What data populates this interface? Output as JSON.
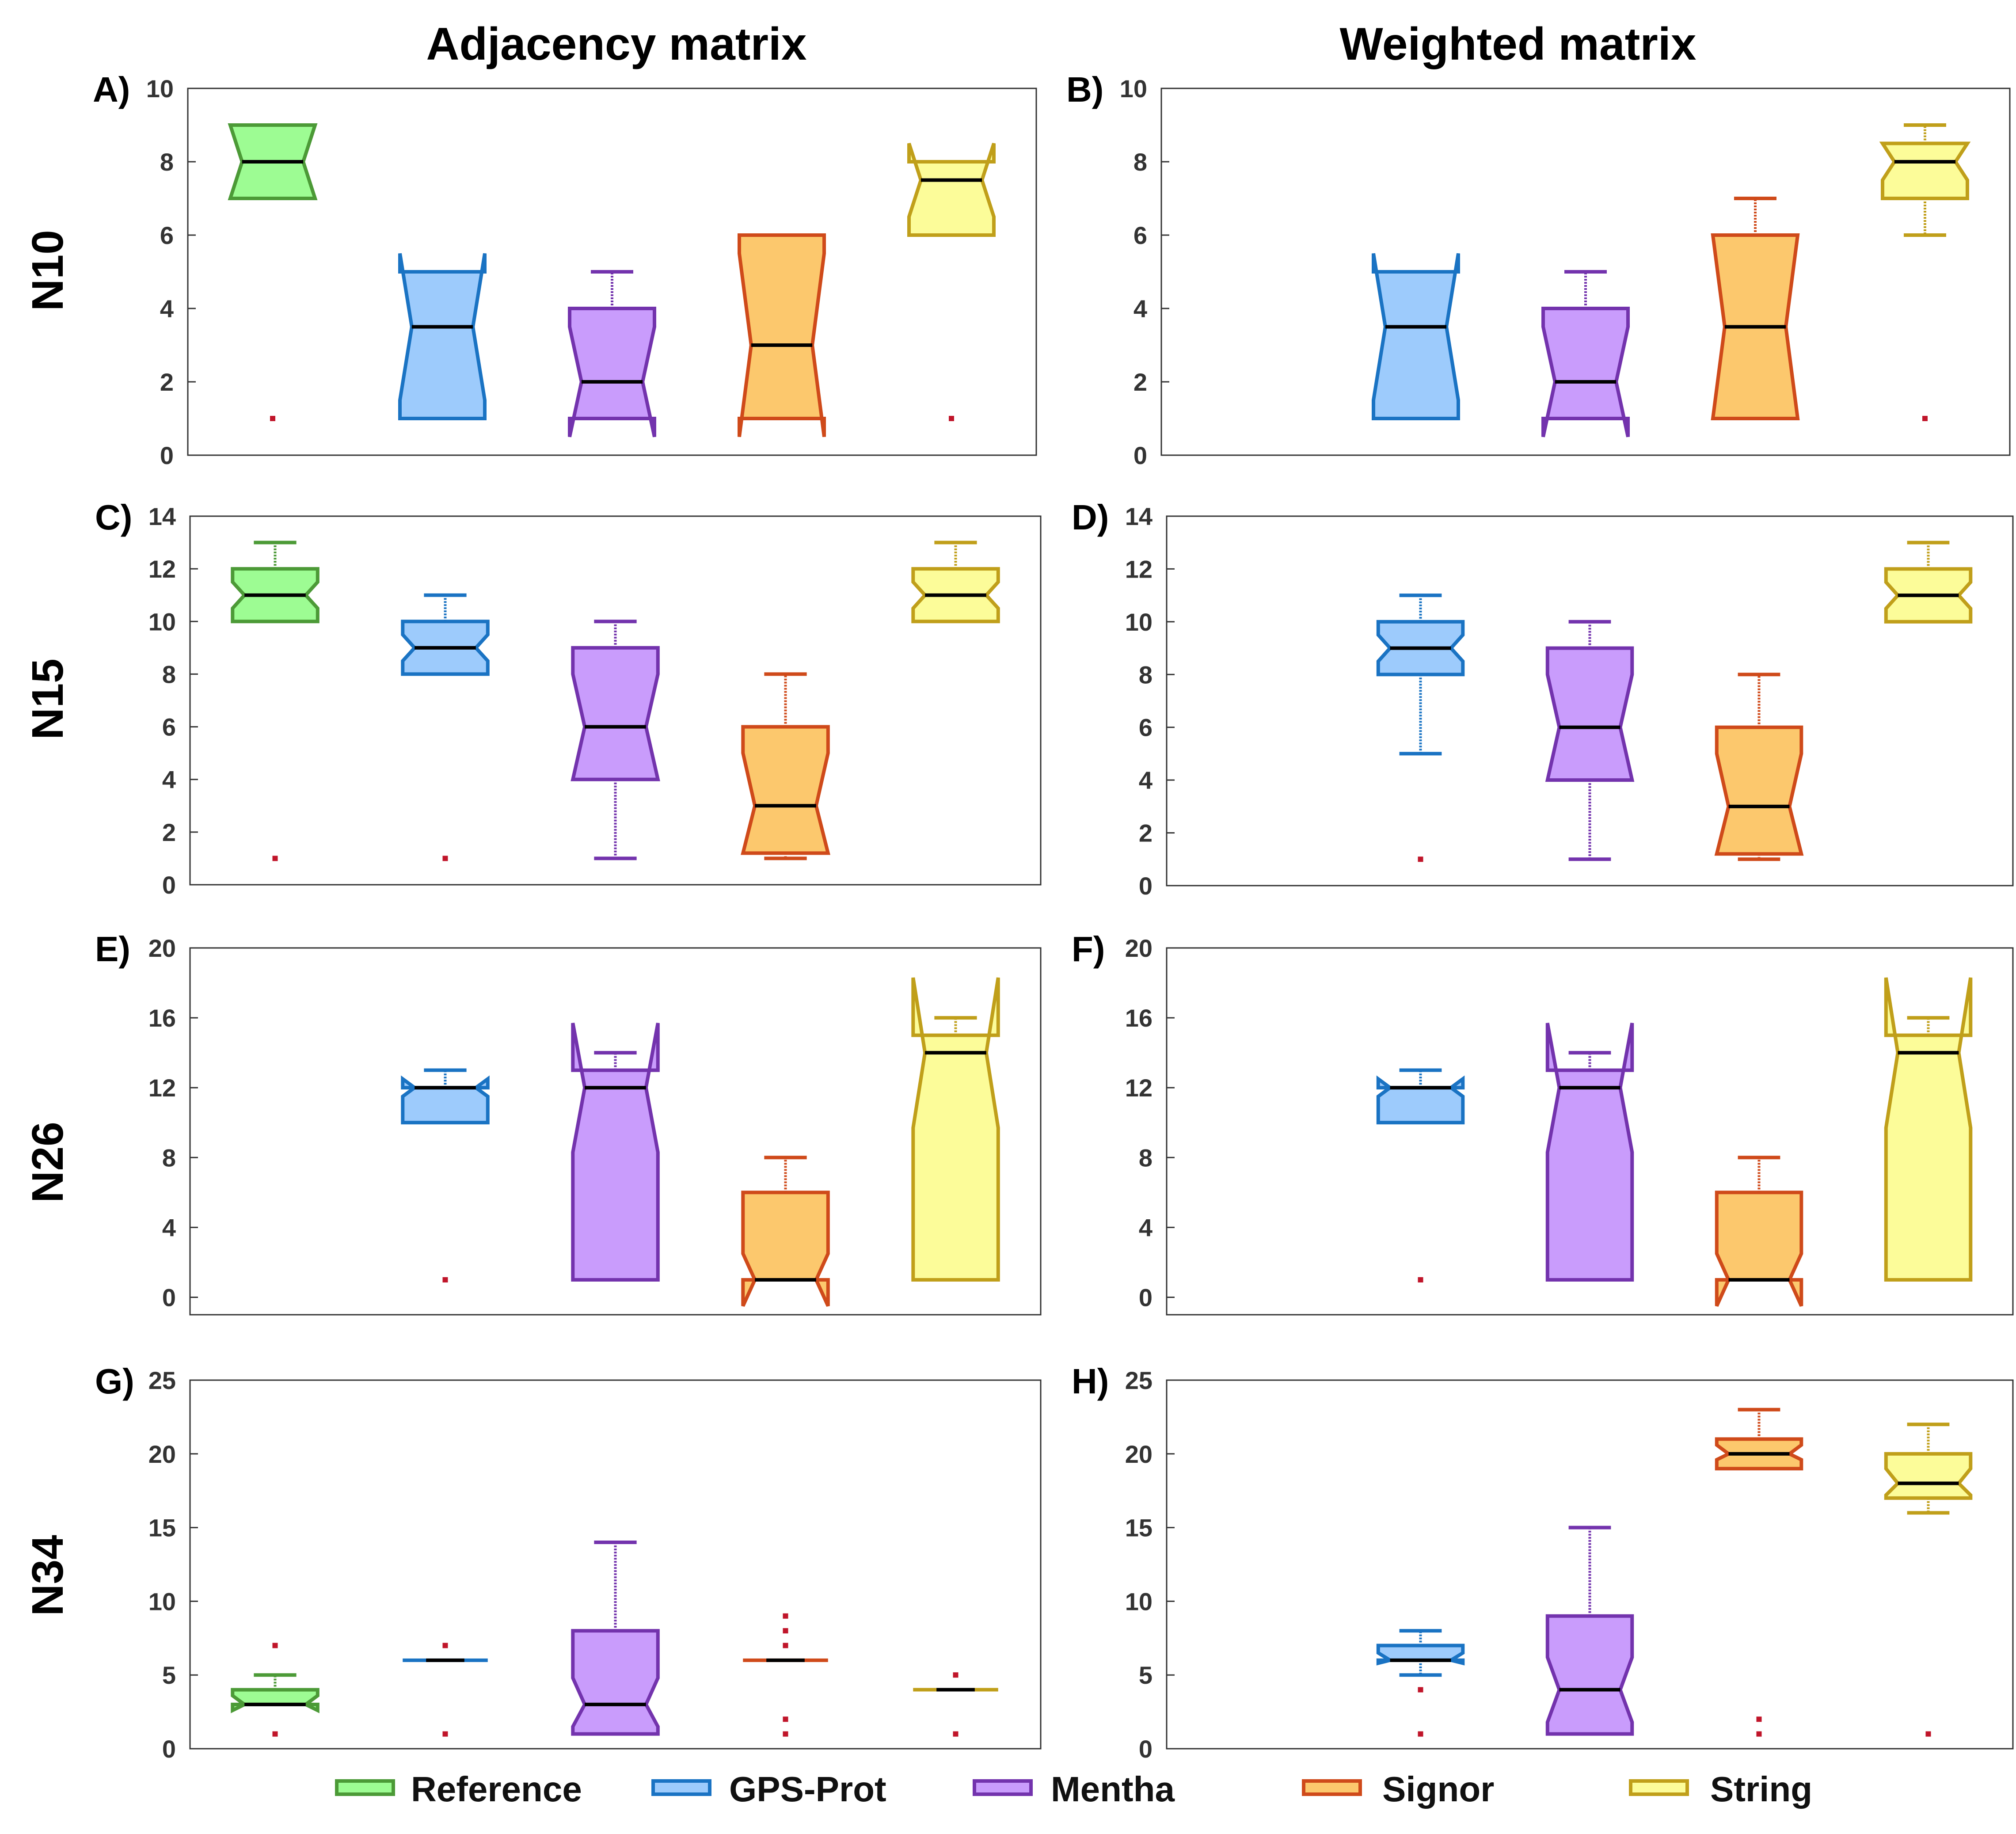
{
  "column_titles": [
    "Adjacency matrix",
    "Weighted matrix"
  ],
  "row_labels": [
    "N10",
    "N15",
    "N26",
    "N34"
  ],
  "legend": [
    {
      "name": "Reference",
      "fill": "#9dfc93",
      "stroke": "#4c9a37"
    },
    {
      "name": "GPS-Prot",
      "fill": "#9dcbfc",
      "stroke": "#1a73c3"
    },
    {
      "name": "Mentha",
      "fill": "#c99cfc",
      "stroke": "#7333ad"
    },
    {
      "name": "Signor",
      "fill": "#fcc86d",
      "stroke": "#cf4a1a"
    },
    {
      "name": "String",
      "fill": "#fcfc99",
      "stroke": "#c09f1a"
    }
  ],
  "outlier_color": "#c0152a",
  "chart_data": [
    {
      "label": "A)",
      "type": "boxplot",
      "notched": true,
      "column": "Adjacency matrix",
      "row": "N10",
      "ylim": [
        0,
        10
      ],
      "yticks": [
        0,
        2,
        4,
        6,
        8,
        10
      ],
      "boxes": [
        {
          "series": "Reference",
          "q1": 7,
          "median": 8,
          "q3": 9,
          "notch": [
            7,
            9
          ],
          "whisker_low": 7,
          "whisker_high": 9,
          "outliers": [
            1
          ]
        },
        {
          "series": "GPS-Prot",
          "q1": 1,
          "median": 3.5,
          "q3": 5,
          "notch": [
            1.5,
            5.5
          ],
          "whisker_low": 1,
          "whisker_high": 5,
          "outliers": []
        },
        {
          "series": "Mentha",
          "q1": 1,
          "median": 2,
          "q3": 4,
          "notch": [
            0.5,
            3.5
          ],
          "whisker_low": 1,
          "whisker_high": 5,
          "outliers": []
        },
        {
          "series": "Signor",
          "q1": 1,
          "median": 3,
          "q3": 6,
          "notch": [
            0.5,
            5.5
          ],
          "whisker_low": 1,
          "whisker_high": 6,
          "outliers": []
        },
        {
          "series": "String",
          "q1": 6,
          "median": 7.5,
          "q3": 8,
          "notch": [
            6.5,
            8.5
          ],
          "whisker_low": 6,
          "whisker_high": 8,
          "outliers": [
            1
          ]
        }
      ]
    },
    {
      "label": "B)",
      "type": "boxplot",
      "notched": true,
      "column": "Weighted matrix",
      "row": "N10",
      "ylim": [
        0,
        10
      ],
      "yticks": [
        0,
        2,
        4,
        6,
        8,
        10
      ],
      "boxes": [
        {
          "series": "Reference",
          "q1": null,
          "median": null,
          "q3": null,
          "notch": null,
          "whisker_low": null,
          "whisker_high": null,
          "outliers": []
        },
        {
          "series": "GPS-Prot",
          "q1": 1,
          "median": 3.5,
          "q3": 5,
          "notch": [
            1.5,
            5.5
          ],
          "whisker_low": 1,
          "whisker_high": 5,
          "outliers": []
        },
        {
          "series": "Mentha",
          "q1": 1,
          "median": 2,
          "q3": 4,
          "notch": [
            0.5,
            3.5
          ],
          "whisker_low": 1,
          "whisker_high": 5,
          "outliers": []
        },
        {
          "series": "Signor",
          "q1": 1,
          "median": 3.5,
          "q3": 6,
          "notch": [
            1,
            6
          ],
          "whisker_low": 1,
          "whisker_high": 7,
          "outliers": []
        },
        {
          "series": "String",
          "q1": 7,
          "median": 8,
          "q3": 8.5,
          "notch": [
            7.5,
            8.5
          ],
          "whisker_low": 6,
          "whisker_high": 9,
          "outliers": [
            1
          ]
        }
      ]
    },
    {
      "label": "C)",
      "type": "boxplot",
      "notched": true,
      "column": "Adjacency matrix",
      "row": "N15",
      "ylim": [
        0,
        14
      ],
      "yticks": [
        0,
        2,
        4,
        6,
        8,
        10,
        12,
        14
      ],
      "boxes": [
        {
          "series": "Reference",
          "q1": 10,
          "median": 11,
          "q3": 12,
          "notch": [
            10.5,
            11.5
          ],
          "whisker_low": 10,
          "whisker_high": 13,
          "outliers": [
            1
          ]
        },
        {
          "series": "GPS-Prot",
          "q1": 8,
          "median": 9,
          "q3": 10,
          "notch": [
            8.5,
            9.5
          ],
          "whisker_low": 8,
          "whisker_high": 11,
          "outliers": [
            1
          ]
        },
        {
          "series": "Mentha",
          "q1": 4,
          "median": 6,
          "q3": 9,
          "notch": [
            4,
            8
          ],
          "whisker_low": 1,
          "whisker_high": 10,
          "outliers": []
        },
        {
          "series": "Signor",
          "q1": 1.2,
          "median": 3,
          "q3": 6,
          "notch": [
            1.2,
            5
          ],
          "whisker_low": 1,
          "whisker_high": 8,
          "outliers": []
        },
        {
          "series": "String",
          "q1": 10,
          "median": 11,
          "q3": 12,
          "notch": [
            10.5,
            11.5
          ],
          "whisker_low": 10,
          "whisker_high": 13,
          "outliers": []
        }
      ]
    },
    {
      "label": "D)",
      "type": "boxplot",
      "notched": true,
      "column": "Weighted matrix",
      "row": "N15",
      "ylim": [
        0,
        14
      ],
      "yticks": [
        0,
        2,
        4,
        6,
        8,
        10,
        12,
        14
      ],
      "boxes": [
        {
          "series": "Reference",
          "q1": null,
          "median": null,
          "q3": null,
          "notch": null,
          "whisker_low": null,
          "whisker_high": null,
          "outliers": []
        },
        {
          "series": "GPS-Prot",
          "q1": 8,
          "median": 9,
          "q3": 10,
          "notch": [
            8.5,
            9.5
          ],
          "whisker_low": 5,
          "whisker_high": 11,
          "outliers": [
            1
          ]
        },
        {
          "series": "Mentha",
          "q1": 4,
          "median": 6,
          "q3": 9,
          "notch": [
            4,
            8
          ],
          "whisker_low": 1,
          "whisker_high": 10,
          "outliers": []
        },
        {
          "series": "Signor",
          "q1": 1.2,
          "median": 3,
          "q3": 6,
          "notch": [
            1.2,
            5
          ],
          "whisker_low": 1,
          "whisker_high": 8,
          "outliers": []
        },
        {
          "series": "String",
          "q1": 10,
          "median": 11,
          "q3": 12,
          "notch": [
            10.5,
            11.5
          ],
          "whisker_low": 10,
          "whisker_high": 13,
          "outliers": []
        }
      ]
    },
    {
      "label": "E)",
      "type": "boxplot",
      "notched": true,
      "column": "Adjacency matrix",
      "row": "N26",
      "ylim": [
        -1,
        20
      ],
      "yticks": [
        0,
        4,
        8,
        12,
        16,
        20
      ],
      "boxes": [
        {
          "series": "Reference",
          "q1": null,
          "median": null,
          "q3": null,
          "notch": null,
          "whisker_low": null,
          "whisker_high": null,
          "outliers": []
        },
        {
          "series": "GPS-Prot",
          "q1": 10,
          "median": 12,
          "q3": 12,
          "notch": [
            11.5,
            12.5
          ],
          "whisker_low": 10,
          "whisker_high": 13,
          "outliers": [
            1
          ]
        },
        {
          "series": "Mentha",
          "q1": 1,
          "median": 12,
          "q3": 13,
          "notch": [
            8.3,
            15.7
          ],
          "whisker_low": 1,
          "whisker_high": 14,
          "outliers": []
        },
        {
          "series": "Signor",
          "q1": 1,
          "median": 1,
          "q3": 6,
          "notch": [
            -0.5,
            2.5
          ],
          "whisker_low": 1,
          "whisker_high": 8,
          "outliers": []
        },
        {
          "series": "String",
          "q1": 1,
          "median": 14,
          "q3": 15,
          "notch": [
            9.7,
            18.3
          ],
          "whisker_low": 1,
          "whisker_high": 16,
          "outliers": []
        }
      ]
    },
    {
      "label": "F)",
      "type": "boxplot",
      "notched": true,
      "column": "Weighted matrix",
      "row": "N26",
      "ylim": [
        -1,
        20
      ],
      "yticks": [
        0,
        4,
        8,
        12,
        16,
        20
      ],
      "boxes": [
        {
          "series": "Reference",
          "q1": null,
          "median": null,
          "q3": null,
          "notch": null,
          "whisker_low": null,
          "whisker_high": null,
          "outliers": []
        },
        {
          "series": "GPS-Prot",
          "q1": 10,
          "median": 12,
          "q3": 12,
          "notch": [
            11.5,
            12.5
          ],
          "whisker_low": 10,
          "whisker_high": 13,
          "outliers": [
            1
          ]
        },
        {
          "series": "Mentha",
          "q1": 1,
          "median": 12,
          "q3": 13,
          "notch": [
            8.3,
            15.7
          ],
          "whisker_low": 1,
          "whisker_high": 14,
          "outliers": []
        },
        {
          "series": "Signor",
          "q1": 1,
          "median": 1,
          "q3": 6,
          "notch": [
            -0.5,
            2.5
          ],
          "whisker_low": 1,
          "whisker_high": 8,
          "outliers": []
        },
        {
          "series": "String",
          "q1": 1,
          "median": 14,
          "q3": 15,
          "notch": [
            9.7,
            18.3
          ],
          "whisker_low": 1,
          "whisker_high": 16,
          "outliers": []
        }
      ]
    },
    {
      "label": "G)",
      "type": "boxplot",
      "notched": true,
      "column": "Adjacency matrix",
      "row": "N34",
      "ylim": [
        0,
        25
      ],
      "yticks": [
        0,
        5,
        10,
        15,
        20,
        25
      ],
      "boxes": [
        {
          "series": "Reference",
          "q1": 3,
          "median": 3,
          "q3": 4,
          "notch": [
            2.6,
            3.6
          ],
          "whisker_low": 3,
          "whisker_high": 5,
          "outliers": [
            1,
            7
          ]
        },
        {
          "series": "GPS-Prot",
          "q1": 6,
          "median": 6,
          "q3": 6,
          "notch": [
            6,
            6
          ],
          "whisker_low": 6,
          "whisker_high": 6,
          "outliers": [
            1,
            7
          ]
        },
        {
          "series": "Mentha",
          "q1": 1,
          "median": 3,
          "q3": 8,
          "notch": [
            1.5,
            4.8
          ],
          "whisker_low": 1,
          "whisker_high": 14,
          "outliers": []
        },
        {
          "series": "Signor",
          "q1": 6,
          "median": 6,
          "q3": 6,
          "notch": [
            6,
            6
          ],
          "whisker_low": 6,
          "whisker_high": 6,
          "outliers": [
            1,
            2,
            7,
            8,
            9
          ]
        },
        {
          "series": "String",
          "q1": 4,
          "median": 4,
          "q3": 4,
          "notch": [
            4,
            4
          ],
          "whisker_low": 4,
          "whisker_high": 4,
          "outliers": [
            1,
            5
          ]
        }
      ]
    },
    {
      "label": "H)",
      "type": "boxplot",
      "notched": true,
      "column": "Weighted matrix",
      "row": "N34",
      "ylim": [
        0,
        25
      ],
      "yticks": [
        0,
        5,
        10,
        15,
        20,
        25
      ],
      "boxes": [
        {
          "series": "Reference",
          "q1": null,
          "median": null,
          "q3": null,
          "notch": null,
          "whisker_low": null,
          "whisker_high": null,
          "outliers": []
        },
        {
          "series": "GPS-Prot",
          "q1": 6,
          "median": 6,
          "q3": 7,
          "notch": [
            5.8,
            6.5
          ],
          "whisker_low": 5,
          "whisker_high": 8,
          "outliers": [
            1,
            4
          ]
        },
        {
          "series": "Mentha",
          "q1": 1,
          "median": 4,
          "q3": 9,
          "notch": [
            1.8,
            6.2
          ],
          "whisker_low": 1,
          "whisker_high": 15,
          "outliers": []
        },
        {
          "series": "Signor",
          "q1": 19,
          "median": 20,
          "q3": 21,
          "notch": [
            19.6,
            20.6
          ],
          "whisker_low": 19,
          "whisker_high": 23,
          "outliers": [
            1,
            2
          ]
        },
        {
          "series": "String",
          "q1": 17,
          "median": 18,
          "q3": 20,
          "notch": [
            17.2,
            19
          ],
          "whisker_low": 16,
          "whisker_high": 22,
          "outliers": [
            1
          ]
        }
      ]
    }
  ]
}
